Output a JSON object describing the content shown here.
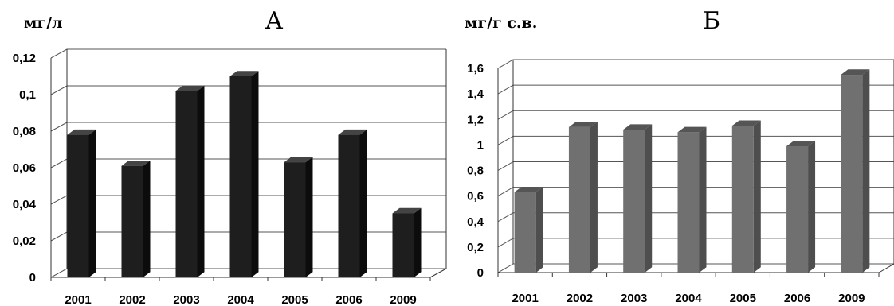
{
  "chart_data": [
    {
      "type": "bar",
      "title": "А",
      "ylabel": "мг/л",
      "xlabel": "",
      "categories": [
        "2001",
        "2002",
        "2003",
        "2004",
        "2005",
        "2006",
        "2009"
      ],
      "values": [
        0.078,
        0.061,
        0.102,
        0.11,
        0.063,
        0.078,
        0.035
      ],
      "ylim": [
        0,
        0.12
      ],
      "yticks": [
        "0",
        "0,02",
        "0,04",
        "0,06",
        "0,08",
        "0,1",
        "0,12"
      ],
      "grid": true,
      "bar_color": "#1e1e1e",
      "bar_side_color": "#0c0c0c",
      "bar_top_color": "#444444"
    },
    {
      "type": "bar",
      "title": "Б",
      "ylabel": "мг/г с.в.",
      "xlabel": "",
      "categories": [
        "2001",
        "2002",
        "2003",
        "2004",
        "2005",
        "2006",
        "2009"
      ],
      "values": [
        0.63,
        1.14,
        1.12,
        1.1,
        1.15,
        0.99,
        1.55
      ],
      "ylim": [
        0,
        1.6
      ],
      "yticks": [
        "0",
        "0,2",
        "0,4",
        "0,6",
        "0,8",
        "1",
        "1,2",
        "1,4",
        "1,6"
      ],
      "grid": true,
      "bar_color": "#707070",
      "bar_side_color": "#4e4e4e",
      "bar_top_color": "#555555"
    }
  ]
}
